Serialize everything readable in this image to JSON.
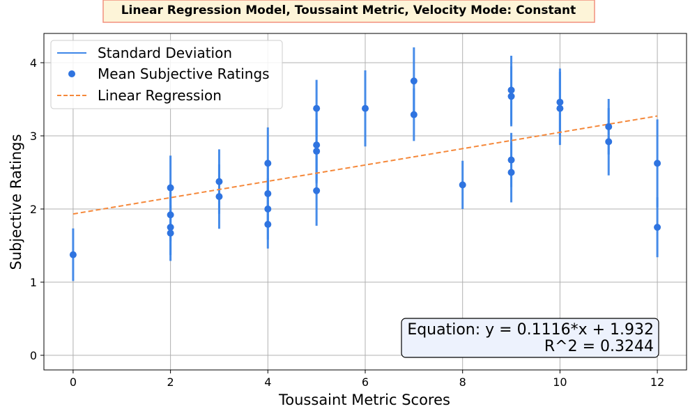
{
  "chart_data": {
    "type": "scatter",
    "title": "Linear Regression Model, Toussaint Metric, Velocity Mode: Constant",
    "xlabel": "Toussaint Metric Scores",
    "ylabel": "Subjective Ratings",
    "xlim": [
      -0.6,
      12.6
    ],
    "ylim": [
      -0.2,
      4.4
    ],
    "x_ticks": [
      0,
      2,
      4,
      6,
      8,
      10,
      12
    ],
    "y_ticks": [
      0,
      1,
      2,
      3,
      4
    ],
    "grid": true,
    "legend_position": "top-left",
    "legend": [
      {
        "label": "Standard Deviation",
        "kind": "line"
      },
      {
        "label": "Mean Subjective Ratings",
        "kind": "marker"
      },
      {
        "label": "Linear Regression",
        "kind": "dashed"
      }
    ],
    "colors": {
      "points": "#2f74e0",
      "errorbars": "#3d86e8",
      "regression": "#f5883a"
    },
    "series": [
      {
        "name": "Mean Subjective Ratings",
        "points": [
          {
            "x": 0,
            "y": 1.375,
            "sd": 0.36
          },
          {
            "x": 2,
            "y": 2.29,
            "sd": 0.44
          },
          {
            "x": 2,
            "y": 1.92,
            "sd": 0.36
          },
          {
            "x": 2,
            "y": 1.75,
            "sd": 0.38
          },
          {
            "x": 2,
            "y": 1.67,
            "sd": 0.38
          },
          {
            "x": 3,
            "y": 2.375,
            "sd": 0.44
          },
          {
            "x": 3,
            "y": 2.17,
            "sd": 0.44
          },
          {
            "x": 4,
            "y": 2.625,
            "sd": 0.49
          },
          {
            "x": 4,
            "y": 2.21,
            "sd": 0.46
          },
          {
            "x": 4,
            "y": 2.0,
            "sd": 0.42
          },
          {
            "x": 4,
            "y": 1.79,
            "sd": 0.33
          },
          {
            "x": 5,
            "y": 3.375,
            "sd": 0.39
          },
          {
            "x": 5,
            "y": 2.875,
            "sd": 0.5
          },
          {
            "x": 5,
            "y": 2.79,
            "sd": 0.44
          },
          {
            "x": 5,
            "y": 2.25,
            "sd": 0.48
          },
          {
            "x": 6,
            "y": 3.375,
            "sd": 0.52
          },
          {
            "x": 7,
            "y": 3.75,
            "sd": 0.46
          },
          {
            "x": 7,
            "y": 3.29,
            "sd": 0.36
          },
          {
            "x": 8,
            "y": 2.33,
            "sd": 0.33
          },
          {
            "x": 9,
            "y": 3.625,
            "sd": 0.47
          },
          {
            "x": 9,
            "y": 3.54,
            "sd": 0.41
          },
          {
            "x": 9,
            "y": 2.67,
            "sd": 0.37
          },
          {
            "x": 9,
            "y": 2.5,
            "sd": 0.41
          },
          {
            "x": 10,
            "y": 3.46,
            "sd": 0.46
          },
          {
            "x": 10,
            "y": 3.375,
            "sd": 0.5
          },
          {
            "x": 11,
            "y": 3.125,
            "sd": 0.38
          },
          {
            "x": 11,
            "y": 2.92,
            "sd": 0.46
          },
          {
            "x": 12,
            "y": 2.625,
            "sd": 0.6
          },
          {
            "x": 12,
            "y": 1.75,
            "sd": 0.41
          }
        ]
      }
    ],
    "regression": {
      "name": "Linear Regression",
      "slope": 0.1116,
      "intercept": 1.932,
      "x_range": [
        0,
        12
      ]
    },
    "annotation": {
      "line1": "Equation: y = 0.1116*x + 1.932",
      "line2": "R^2 = 0.3244"
    }
  }
}
